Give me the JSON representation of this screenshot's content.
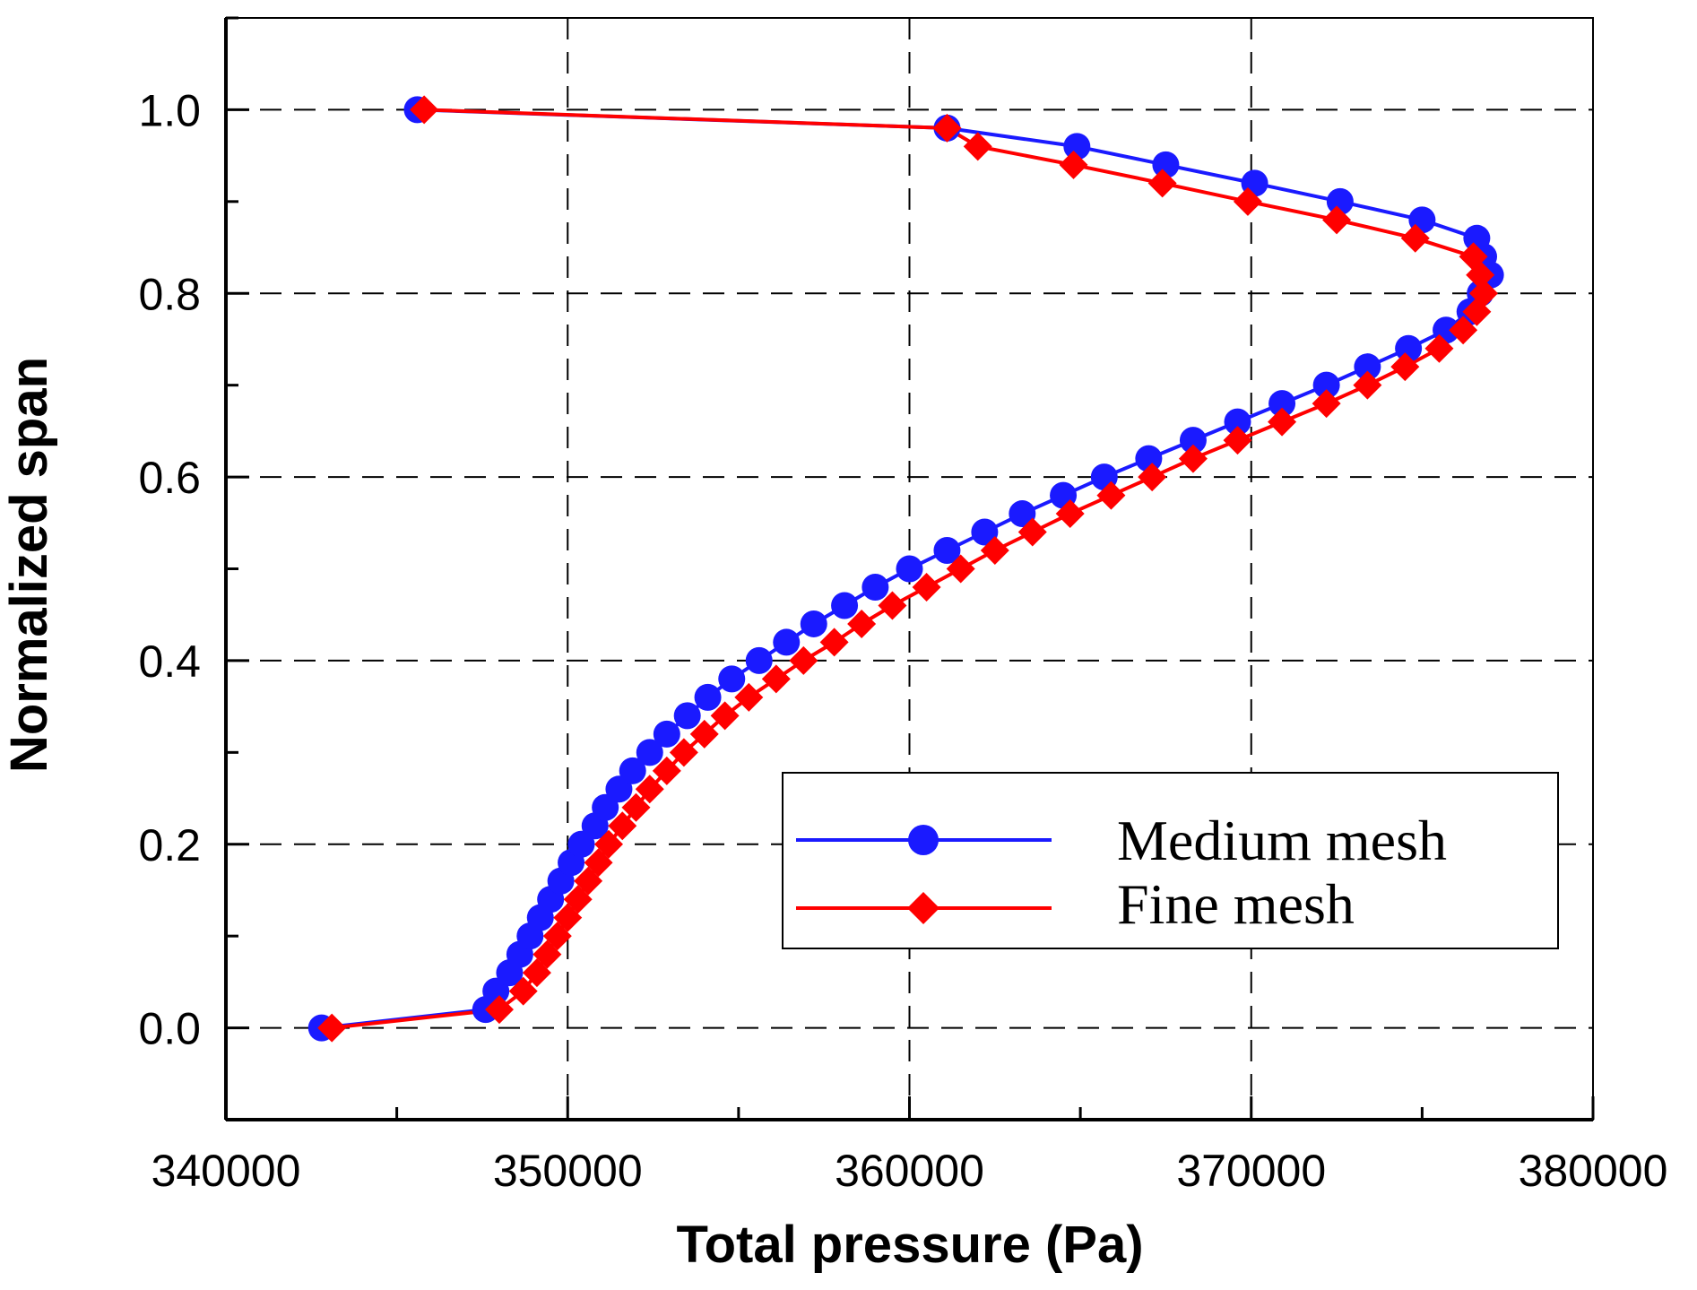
{
  "chart_data": {
    "type": "line",
    "title": "",
    "xlabel": "Total pressure (Pa)",
    "ylabel": "Normalized span",
    "xlim": [
      340000,
      380000
    ],
    "ylim": [
      -0.1,
      1.1
    ],
    "x_major_ticks": [
      340000,
      350000,
      360000,
      370000,
      380000
    ],
    "x_tick_labels": [
      "340000",
      "350000",
      "360000",
      "370000",
      "380000"
    ],
    "y_major_ticks": [
      0.0,
      0.2,
      0.4,
      0.6,
      0.8,
      1.0
    ],
    "y_tick_labels": [
      "0.0",
      "0.2",
      "0.4",
      "0.6",
      "0.8",
      "1.0"
    ],
    "grid": true,
    "legend_position": "lower-right",
    "series": [
      {
        "name": "Medium mesh",
        "color": "#1a1aff",
        "marker": "circle",
        "points": [
          [
            342800,
            0.0
          ],
          [
            347600,
            0.02
          ],
          [
            347900,
            0.04
          ],
          [
            348300,
            0.06
          ],
          [
            348600,
            0.08
          ],
          [
            348900,
            0.1
          ],
          [
            349200,
            0.12
          ],
          [
            349500,
            0.14
          ],
          [
            349800,
            0.16
          ],
          [
            350100,
            0.18
          ],
          [
            350400,
            0.2
          ],
          [
            350800,
            0.22
          ],
          [
            351100,
            0.24
          ],
          [
            351500,
            0.26
          ],
          [
            351900,
            0.28
          ],
          [
            352400,
            0.3
          ],
          [
            352900,
            0.32
          ],
          [
            353500,
            0.34
          ],
          [
            354100,
            0.36
          ],
          [
            354800,
            0.38
          ],
          [
            355600,
            0.4
          ],
          [
            356400,
            0.42
          ],
          [
            357200,
            0.44
          ],
          [
            358100,
            0.46
          ],
          [
            359000,
            0.48
          ],
          [
            360000,
            0.5
          ],
          [
            361100,
            0.52
          ],
          [
            362200,
            0.54
          ],
          [
            363300,
            0.56
          ],
          [
            364500,
            0.58
          ],
          [
            365700,
            0.6
          ],
          [
            367000,
            0.62
          ],
          [
            368300,
            0.64
          ],
          [
            369600,
            0.66
          ],
          [
            370900,
            0.68
          ],
          [
            372200,
            0.7
          ],
          [
            373400,
            0.72
          ],
          [
            374600,
            0.74
          ],
          [
            375700,
            0.76
          ],
          [
            376400,
            0.78
          ],
          [
            376700,
            0.8
          ],
          [
            377000,
            0.82
          ],
          [
            376800,
            0.84
          ],
          [
            376600,
            0.86
          ],
          [
            375000,
            0.88
          ],
          [
            372600,
            0.9
          ],
          [
            370100,
            0.92
          ],
          [
            367500,
            0.94
          ],
          [
            364900,
            0.96
          ],
          [
            361100,
            0.98
          ],
          [
            345600,
            1.0
          ]
        ]
      },
      {
        "name": "Fine mesh",
        "color": "#ff0000",
        "marker": "diamond",
        "points": [
          [
            343100,
            0.0
          ],
          [
            348000,
            0.02
          ],
          [
            348700,
            0.04
          ],
          [
            349100,
            0.06
          ],
          [
            349400,
            0.08
          ],
          [
            349700,
            0.1
          ],
          [
            350000,
            0.12
          ],
          [
            350300,
            0.14
          ],
          [
            350600,
            0.16
          ],
          [
            350900,
            0.18
          ],
          [
            351200,
            0.2
          ],
          [
            351600,
            0.22
          ],
          [
            352000,
            0.24
          ],
          [
            352400,
            0.26
          ],
          [
            352900,
            0.28
          ],
          [
            353400,
            0.3
          ],
          [
            354000,
            0.32
          ],
          [
            354600,
            0.34
          ],
          [
            355300,
            0.36
          ],
          [
            356100,
            0.38
          ],
          [
            356900,
            0.4
          ],
          [
            357800,
            0.42
          ],
          [
            358600,
            0.44
          ],
          [
            359500,
            0.46
          ],
          [
            360500,
            0.48
          ],
          [
            361500,
            0.5
          ],
          [
            362500,
            0.52
          ],
          [
            363600,
            0.54
          ],
          [
            364700,
            0.56
          ],
          [
            365900,
            0.58
          ],
          [
            367100,
            0.6
          ],
          [
            368300,
            0.62
          ],
          [
            369600,
            0.64
          ],
          [
            370900,
            0.66
          ],
          [
            372200,
            0.68
          ],
          [
            373400,
            0.7
          ],
          [
            374500,
            0.72
          ],
          [
            375500,
            0.74
          ],
          [
            376200,
            0.76
          ],
          [
            376600,
            0.78
          ],
          [
            376800,
            0.8
          ],
          [
            376700,
            0.82
          ],
          [
            376500,
            0.84
          ],
          [
            374800,
            0.86
          ],
          [
            372500,
            0.88
          ],
          [
            369900,
            0.9
          ],
          [
            367400,
            0.92
          ],
          [
            364800,
            0.94
          ],
          [
            362000,
            0.96
          ],
          [
            361100,
            0.98
          ],
          [
            345800,
            1.0
          ]
        ]
      }
    ]
  }
}
